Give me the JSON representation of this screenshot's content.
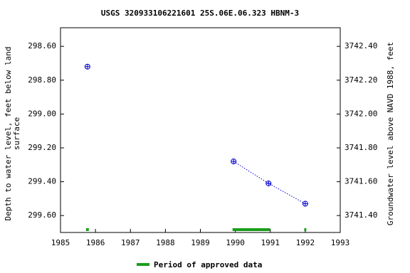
{
  "chart_data": {
    "type": "scatter",
    "title": "USGS 320933106221601 25S.06E.06.323 HBNM-3",
    "y_label": [
      "Depth to water level, feet below land",
      "surface"
    ],
    "y2_label": "Groundwater level above NAVD 1988, feet",
    "xlim": [
      1985,
      1993
    ],
    "xticks": [
      1985,
      1986,
      1987,
      1988,
      1989,
      1990,
      1991,
      1992,
      1993
    ],
    "ylim": [
      298.49,
      299.7
    ],
    "yticks": [
      {
        "value": 298.6,
        "label": "298.60"
      },
      {
        "value": 298.8,
        "label": "298.80"
      },
      {
        "value": 299.0,
        "label": "299.00"
      },
      {
        "value": 299.2,
        "label": "299.20"
      },
      {
        "value": 299.4,
        "label": "299.40"
      },
      {
        "value": 299.6,
        "label": "299.60"
      }
    ],
    "y2lim": [
      3742.51,
      3741.3
    ],
    "y2ticks": [
      {
        "value": 3742.4,
        "label": "3742.40"
      },
      {
        "value": 3742.2,
        "label": "3742.20"
      },
      {
        "value": 3742.0,
        "label": "3742.00"
      },
      {
        "value": 3741.8,
        "label": "3741.80"
      },
      {
        "value": 3741.6,
        "label": "3741.60"
      },
      {
        "value": 3741.4,
        "label": "3741.40"
      }
    ],
    "series": [
      {
        "color": "#0000cc",
        "x": [
          1985.77,
          1989.95,
          1990.95,
          1992.0
        ],
        "values": [
          298.72,
          299.28,
          299.41,
          299.53
        ]
      }
    ],
    "approved_periods": {
      "name": "Period of approved data",
      "color": "#1a9e1a",
      "ranges": [
        [
          1985.73,
          1985.81
        ],
        [
          1989.92,
          1990.99
        ],
        [
          1991.97,
          1992.03
        ]
      ]
    }
  }
}
